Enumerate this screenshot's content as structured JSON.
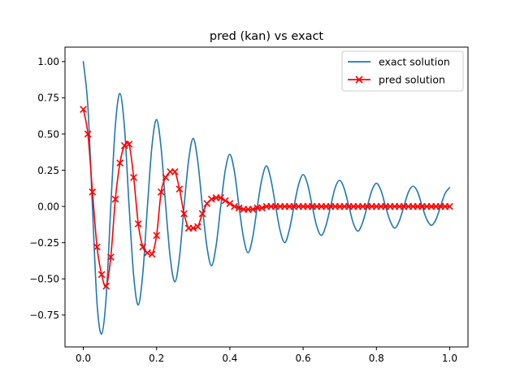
{
  "chart_data": {
    "type": "line",
    "title": "pred (kan) vs exact",
    "xlabel": "",
    "ylabel": "",
    "xlim": [
      -0.05,
      1.05
    ],
    "ylim": [
      -0.97,
      1.1
    ],
    "xticks": [
      0.0,
      0.2,
      0.4,
      0.6,
      0.8,
      1.0
    ],
    "xtick_labels": [
      "0.0",
      "0.2",
      "0.4",
      "0.6",
      "0.8",
      "1.0"
    ],
    "yticks": [
      -0.75,
      -0.5,
      -0.25,
      0.0,
      0.25,
      0.5,
      0.75,
      1.0
    ],
    "ytick_labels": [
      "−0.75",
      "−0.50",
      "−0.25",
      "0.00",
      "0.25",
      "0.50",
      "0.75",
      "1.00"
    ],
    "grid": false,
    "legend": {
      "placement": "top-right",
      "entries": [
        "exact solution",
        "pred solution"
      ]
    },
    "series": [
      {
        "name": "exact solution",
        "color": "#1f77b4",
        "marker": "none",
        "x": [
          0.0,
          0.0125,
          0.025,
          0.0375,
          0.05,
          0.0625,
          0.075,
          0.0875,
          0.1,
          0.1125,
          0.125,
          0.1375,
          0.15,
          0.1625,
          0.175,
          0.1875,
          0.2,
          0.2125,
          0.225,
          0.2375,
          0.25,
          0.2625,
          0.275,
          0.2875,
          0.3,
          0.3125,
          0.325,
          0.3375,
          0.35,
          0.3625,
          0.375,
          0.3875,
          0.4,
          0.4125,
          0.425,
          0.4375,
          0.45,
          0.4625,
          0.475,
          0.4875,
          0.5,
          0.5125,
          0.525,
          0.5375,
          0.55,
          0.5625,
          0.575,
          0.5875,
          0.6,
          0.6125,
          0.625,
          0.6375,
          0.65,
          0.6625,
          0.675,
          0.6875,
          0.7,
          0.7125,
          0.725,
          0.7375,
          0.75,
          0.7625,
          0.775,
          0.7875,
          0.8,
          0.8125,
          0.825,
          0.8375,
          0.85,
          0.8625,
          0.875,
          0.8875,
          0.9,
          0.9125,
          0.925,
          0.9375,
          0.95,
          0.9625,
          0.975,
          0.9875,
          1.0
        ],
        "y": [
          1.0,
          0.69,
          -0.01,
          -0.67,
          -0.88,
          -0.62,
          0.0,
          0.56,
          0.78,
          0.54,
          0.0,
          -0.48,
          -0.68,
          -0.46,
          0.0,
          0.42,
          0.6,
          0.4,
          0.0,
          -0.36,
          -0.52,
          -0.35,
          0.0,
          0.32,
          0.47,
          0.31,
          0.0,
          -0.28,
          -0.41,
          -0.27,
          0.0,
          0.25,
          0.36,
          0.24,
          0.0,
          -0.22,
          -0.32,
          -0.21,
          0.0,
          0.19,
          0.28,
          0.18,
          0.0,
          -0.17,
          -0.25,
          -0.16,
          0.0,
          0.15,
          0.22,
          0.15,
          0.0,
          -0.14,
          -0.2,
          -0.13,
          0.0,
          0.13,
          0.18,
          0.12,
          0.0,
          -0.12,
          -0.17,
          -0.11,
          0.0,
          0.11,
          0.16,
          0.11,
          0.0,
          -0.1,
          -0.15,
          -0.1,
          0.0,
          0.1,
          0.14,
          0.1,
          0.0,
          -0.09,
          -0.13,
          -0.09,
          0.0,
          0.09,
          0.13
        ]
      },
      {
        "name": "pred solution",
        "color": "#ff0000",
        "marker": "x",
        "x": [
          0.0,
          0.0125,
          0.025,
          0.0375,
          0.05,
          0.0625,
          0.075,
          0.0875,
          0.1,
          0.1125,
          0.125,
          0.1375,
          0.15,
          0.1625,
          0.175,
          0.1875,
          0.2,
          0.2125,
          0.225,
          0.2375,
          0.25,
          0.2625,
          0.275,
          0.2875,
          0.3,
          0.3125,
          0.325,
          0.3375,
          0.35,
          0.3625,
          0.375,
          0.3875,
          0.4,
          0.4125,
          0.425,
          0.4375,
          0.45,
          0.4625,
          0.475,
          0.4875,
          0.5,
          0.5125,
          0.525,
          0.5375,
          0.55,
          0.5625,
          0.575,
          0.5875,
          0.6,
          0.6125,
          0.625,
          0.6375,
          0.65,
          0.6625,
          0.675,
          0.6875,
          0.7,
          0.7125,
          0.725,
          0.7375,
          0.75,
          0.7625,
          0.775,
          0.7875,
          0.8,
          0.8125,
          0.825,
          0.8375,
          0.85,
          0.8625,
          0.875,
          0.8875,
          0.9,
          0.9125,
          0.925,
          0.9375,
          0.95,
          0.9625,
          0.975,
          0.9875,
          1.0
        ],
        "y": [
          0.67,
          0.5,
          0.1,
          -0.28,
          -0.47,
          -0.55,
          -0.35,
          0.05,
          0.3,
          0.42,
          0.43,
          0.2,
          -0.12,
          -0.28,
          -0.32,
          -0.33,
          -0.2,
          0.1,
          0.2,
          0.24,
          0.24,
          0.12,
          -0.05,
          -0.15,
          -0.15,
          -0.14,
          -0.05,
          0.02,
          0.05,
          0.06,
          0.06,
          0.04,
          0.02,
          0.0,
          -0.01,
          -0.02,
          -0.02,
          -0.02,
          -0.01,
          -0.01,
          0.0,
          0.0,
          0.0,
          0.0,
          0.0,
          0.0,
          0.0,
          0.0,
          0.0,
          0.0,
          0.0,
          0.0,
          0.0,
          0.0,
          0.0,
          0.0,
          0.0,
          0.0,
          0.0,
          0.0,
          0.0,
          0.0,
          0.0,
          0.0,
          0.0,
          0.0,
          0.0,
          0.0,
          0.0,
          0.0,
          0.0,
          0.0,
          0.0,
          0.0,
          0.0,
          0.0,
          0.0,
          0.0,
          0.0,
          0.0,
          0.0
        ]
      }
    ]
  }
}
